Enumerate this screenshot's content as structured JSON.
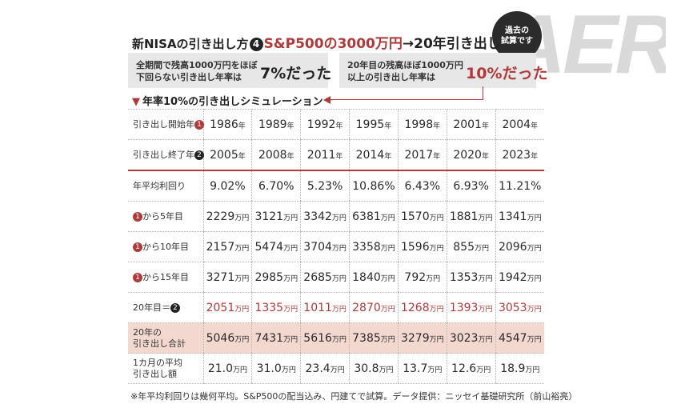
{
  "watermark": "AERA",
  "badge": {
    "line1": "過去の",
    "line2": "試算です"
  },
  "title": {
    "part1": "新NISAの引き出し方",
    "num": "4",
    "part2": "S&P500の3000万円",
    "part3": "→20年引き出し"
  },
  "box1": {
    "line1": "全期間で残高1000万円をほぼ",
    "line2": "下回らない引き出し年率は",
    "highlight": "7%だった"
  },
  "box2": {
    "line1": "20年目の残高ほぼ1000万円",
    "line2": "以上の引き出し年率は",
    "highlight": "10%だった"
  },
  "sim_title": {
    "tri": "▼",
    "text": "年率10%の引き出しシミュレーション"
  },
  "circle_labels": {
    "one": "1",
    "two": "2"
  },
  "unit_year": "年",
  "unit_man": "万円",
  "rows": {
    "start": {
      "label": "引き出し開始年",
      "values": [
        "1986",
        "1989",
        "1992",
        "1995",
        "1998",
        "2001",
        "2004"
      ]
    },
    "end": {
      "label": "引き出し終了年",
      "values": [
        "2005",
        "2008",
        "2011",
        "2014",
        "2017",
        "2020",
        "2023"
      ]
    },
    "yield": {
      "label": "年平均利回り",
      "values": [
        "9.02%",
        "6.70%",
        "5.23%",
        "10.86%",
        "6.43%",
        "6.93%",
        "11.21%"
      ]
    },
    "y5": {
      "label": "から5年目",
      "values": [
        "2229",
        "3121",
        "3342",
        "6381",
        "1570",
        "1881",
        "1341"
      ]
    },
    "y10": {
      "label": "から10年目",
      "values": [
        "2157",
        "5474",
        "3704",
        "3358",
        "1596",
        "855",
        "2096"
      ]
    },
    "y15": {
      "label": "から15年目",
      "values": [
        "3271",
        "2985",
        "2685",
        "1840",
        "792",
        "1353",
        "1942"
      ]
    },
    "y20": {
      "label": "20年目＝",
      "values": [
        "2051",
        "1335",
        "1011",
        "2870",
        "1268",
        "1393",
        "3053"
      ]
    },
    "total": {
      "label1": "20年の",
      "label2": "引き出し合計",
      "values": [
        "5046",
        "7431",
        "5616",
        "7385",
        "3279",
        "3023",
        "4547"
      ]
    },
    "monthly": {
      "label1": "1カ月の平均",
      "label2": "引き出し額",
      "values": [
        "21.0",
        "31.0",
        "23.4",
        "30.8",
        "13.7",
        "12.6",
        "18.9"
      ]
    }
  },
  "footnote": "※年平均利回りは幾何平均。S&P500の配当込み、円建てで試算。データ提供：ニッセイ基礎研究所（前山裕亮）",
  "colors": {
    "accent_red": "#b03a3a",
    "pink_row": "#f3d8d0",
    "box_gray": "#e7e7e7"
  }
}
